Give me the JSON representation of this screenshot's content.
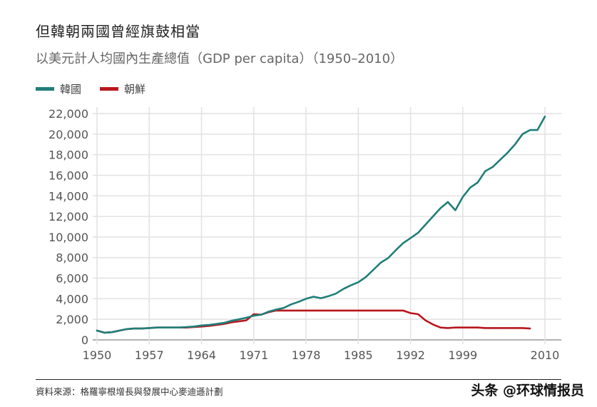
{
  "title": "但韓朝兩國曾經旗鼓相當",
  "subtitle": "以美元計人均國內生產總值（GDP per capita）（1950–2010）",
  "source": "資料來源：格羅寧根增長與發展中心麥迪遜計劃",
  "watermark": "头条 @环球情报员",
  "chart_data": {
    "type": "line",
    "xlim": [
      1950,
      2010
    ],
    "ylim": [
      0,
      22000
    ],
    "grid": true,
    "legend_position": "top-left",
    "x_ticks": [
      "1950",
      "1957",
      "1964",
      "1971",
      "1978",
      "1985",
      "1992",
      "1999",
      "2010"
    ],
    "x_tick_values": [
      1950,
      1957,
      1964,
      1971,
      1978,
      1985,
      1992,
      1999,
      2010
    ],
    "y_ticks": [
      "0",
      "2,000",
      "4,000",
      "6,000",
      "8,000",
      "10,000",
      "12,000",
      "14,000",
      "16,000",
      "18,000",
      "20,000",
      "22,000"
    ],
    "y_tick_values": [
      0,
      2000,
      4000,
      6000,
      8000,
      10000,
      12000,
      14000,
      16000,
      18000,
      20000,
      22000
    ],
    "series": [
      {
        "name": "韓國",
        "color": "#1f7f78",
        "x": [
          1950,
          1951,
          1952,
          1953,
          1954,
          1955,
          1956,
          1957,
          1958,
          1959,
          1960,
          1961,
          1962,
          1963,
          1964,
          1965,
          1966,
          1967,
          1968,
          1969,
          1970,
          1971,
          1972,
          1973,
          1974,
          1975,
          1976,
          1977,
          1978,
          1979,
          1980,
          1981,
          1982,
          1983,
          1984,
          1985,
          1986,
          1987,
          1988,
          1989,
          1990,
          1991,
          1992,
          1993,
          1994,
          1995,
          1996,
          1997,
          1998,
          1999,
          2000,
          2001,
          2002,
          2003,
          2004,
          2005,
          2006,
          2007,
          2008,
          2009,
          2010
        ],
        "values": [
          900,
          700,
          750,
          900,
          1050,
          1100,
          1100,
          1150,
          1200,
          1200,
          1200,
          1200,
          1250,
          1300,
          1400,
          1450,
          1550,
          1650,
          1850,
          2000,
          2150,
          2350,
          2450,
          2750,
          2950,
          3100,
          3450,
          3700,
          4000,
          4200,
          4050,
          4250,
          4500,
          4950,
          5300,
          5600,
          6100,
          6800,
          7500,
          7950,
          8700,
          9400,
          9900,
          10400,
          11200,
          12000,
          12800,
          13400,
          12600,
          13900,
          14800,
          15300,
          16400,
          16800,
          17500,
          18200,
          19000,
          20000,
          20400,
          20400,
          21700
        ]
      },
      {
        "name": "朝鮮",
        "color": "#b8171d",
        "x": [
          1950,
          1951,
          1952,
          1953,
          1954,
          1955,
          1956,
          1957,
          1958,
          1959,
          1960,
          1961,
          1962,
          1963,
          1964,
          1965,
          1966,
          1967,
          1968,
          1969,
          1970,
          1971,
          1972,
          1973,
          1974,
          1975,
          1980,
          1985,
          1990,
          1991,
          1992,
          1993,
          1994,
          1995,
          1996,
          1997,
          1998,
          1999,
          2000,
          2001,
          2002,
          2003,
          2004,
          2005,
          2006,
          2007,
          2008
        ],
        "values": [
          900,
          700,
          750,
          900,
          1050,
          1100,
          1100,
          1150,
          1200,
          1200,
          1200,
          1200,
          1200,
          1250,
          1300,
          1350,
          1450,
          1550,
          1700,
          1800,
          1900,
          2500,
          2450,
          2700,
          2850,
          2850,
          2850,
          2850,
          2850,
          2850,
          2600,
          2500,
          1900,
          1500,
          1200,
          1150,
          1200,
          1200,
          1200,
          1200,
          1150,
          1150,
          1150,
          1150,
          1150,
          1150,
          1100
        ]
      }
    ]
  }
}
